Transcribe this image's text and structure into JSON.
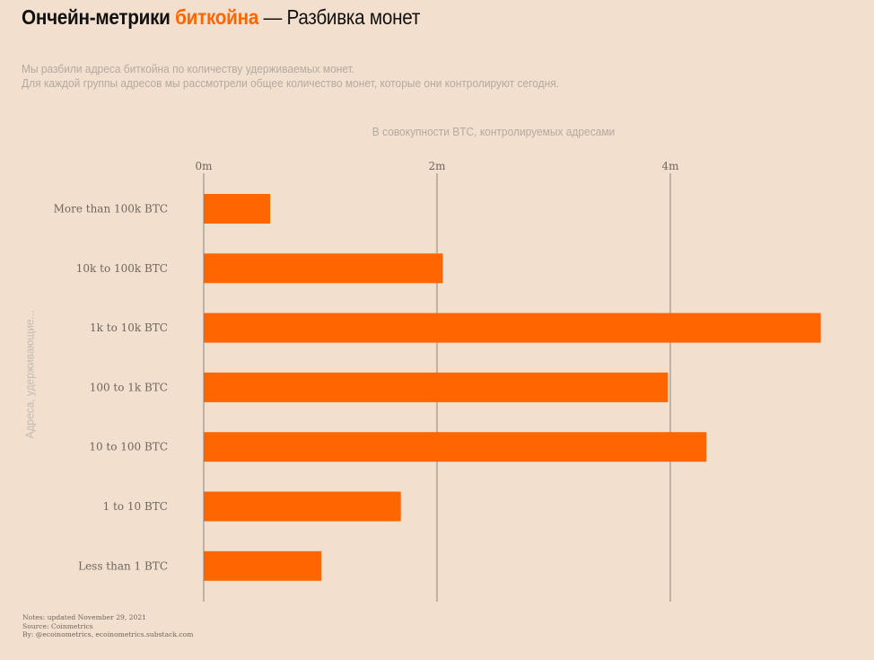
{
  "header": {
    "title_part1": "Ончейн-метрики",
    "title_accent": "биткойна",
    "title_part2": "— Разбивка монет",
    "subtitle_line1": "Мы разбили адреса биткойна по количеству удерживаемых монет.",
    "subtitle_line2": "Для каждой группы адресов мы рассмотрели общее количество монет, которые они контролируют сегодня."
  },
  "colors": {
    "background": "#f3dfcd",
    "bar": "#ff6600",
    "accent": "#ff6600",
    "gridline": "#8a8580"
  },
  "footer": {
    "line1": "Notes: updated November 29, 2021",
    "line2": "Source: Coinmetrics",
    "line3": "By: @ecoinometrics, ecoinometrics.substack.com"
  },
  "chart_data": {
    "type": "bar",
    "orientation": "horizontal",
    "x_axis_title": "В совокупности BTC, контролируемых адресами",
    "y_axis_title": "Адреса, удерживающие...",
    "x_ticks": [
      {
        "value": 0,
        "label": "0m"
      },
      {
        "value": 2000000,
        "label": "2m"
      },
      {
        "value": 4000000,
        "label": "4m"
      }
    ],
    "xlim": [
      0,
      5300000
    ],
    "categories": [
      "More than 100k BTC",
      "10k to 100k BTC",
      "1k to 10k BTC",
      "100 to 1k BTC",
      "10 to 100 BTC",
      "1 to 10 BTC",
      "Less than 1 BTC"
    ],
    "values": [
      570000,
      2050000,
      5290000,
      3980000,
      4310000,
      1690000,
      1010000
    ],
    "grid": true,
    "x_axis_position": "top"
  }
}
